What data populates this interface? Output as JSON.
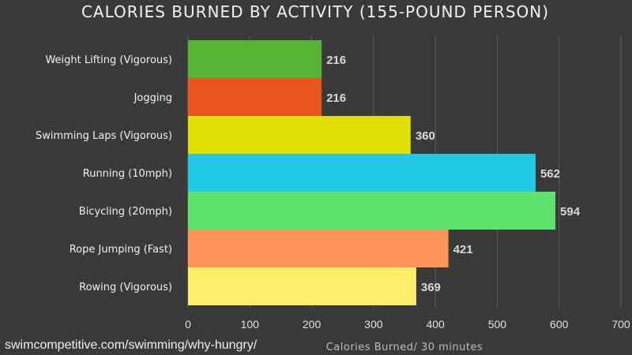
{
  "chart_data": {
    "type": "bar",
    "orientation": "horizontal",
    "title": "CALORIES BURNED BY ACTIVITY (155-POUND PERSON)",
    "xlabel": "Calories Burned/ 30 minutes",
    "categories": [
      "Weight Lifting (Vigorous)",
      "Jogging",
      "Swimming Laps (Vigorous)",
      "Running (10mph)",
      "Bicycling (20mph)",
      "Rope Jumping (Fast)",
      "Rowing (Vigorous)"
    ],
    "values": [
      216,
      216,
      360,
      562,
      594,
      421,
      369
    ],
    "colors": [
      "#56b534",
      "#e8551c",
      "#dde000",
      "#22c9e6",
      "#5ee46e",
      "#fe965a",
      "#fdee69"
    ],
    "xlim": [
      0,
      700
    ],
    "xticks": [
      0,
      100,
      200,
      300,
      400,
      500,
      600,
      700
    ],
    "grid": true,
    "legend": "none"
  },
  "source": "swimcompetitive.com/swimming/why-hungry/"
}
